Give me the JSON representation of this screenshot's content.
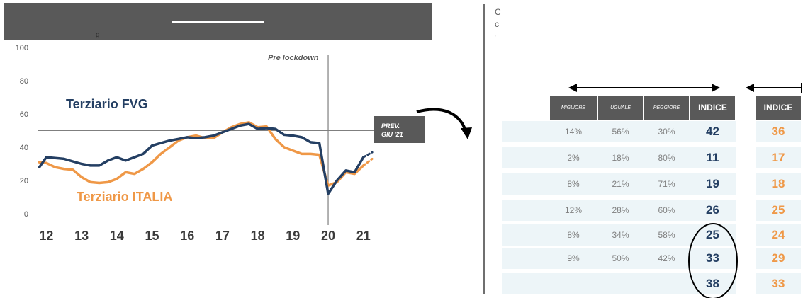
{
  "header": {
    "fragment": "g"
  },
  "chart_data": {
    "type": "line",
    "ylim": [
      0,
      100
    ],
    "y_ticks": [
      "0",
      "20",
      "40",
      "60",
      "80",
      "100"
    ],
    "x_labels": [
      "12",
      "13",
      "14",
      "15",
      "16",
      "17",
      "18",
      "19",
      "20",
      "21"
    ],
    "xlim": [
      2011.75,
      2021.75
    ],
    "reference_line": 50,
    "lockdown_x": 2020.0,
    "lockdown_label": "Pre lockdown",
    "forecast_label_line1": "PREV.",
    "forecast_label_line2": "GIU '21",
    "colors": {
      "fvg": "#243f63",
      "italia": "#ef9847"
    },
    "series": [
      {
        "name": "Terziario FVG",
        "color": "#243f63",
        "x": [
          2011.8,
          2012.0,
          2012.25,
          2012.5,
          2012.75,
          2013.0,
          2013.25,
          2013.5,
          2013.75,
          2014.0,
          2014.25,
          2014.5,
          2014.75,
          2015.0,
          2015.25,
          2015.5,
          2015.75,
          2016.0,
          2016.25,
          2016.5,
          2016.75,
          2017.0,
          2017.25,
          2017.5,
          2017.75,
          2018.0,
          2018.25,
          2018.5,
          2018.75,
          2019.0,
          2019.25,
          2019.5,
          2019.75,
          2020.0,
          2020.25,
          2020.5,
          2020.75,
          2021.0
        ],
        "values": [
          28,
          34,
          33.5,
          33,
          31.5,
          30,
          29,
          29,
          32,
          34,
          32,
          34,
          36,
          41,
          42.5,
          44,
          45,
          46,
          45.5,
          46,
          47,
          49,
          51,
          53,
          54,
          51,
          51.5,
          51,
          47.5,
          47,
          46,
          43,
          42.5,
          12,
          20,
          26,
          25,
          34
        ]
      },
      {
        "name": "Terziario ITALIA",
        "color": "#ef9847",
        "x": [
          2011.8,
          2012.0,
          2012.25,
          2012.5,
          2012.75,
          2013.0,
          2013.25,
          2013.5,
          2013.75,
          2014.0,
          2014.25,
          2014.5,
          2014.75,
          2015.0,
          2015.25,
          2015.5,
          2015.75,
          2016.0,
          2016.25,
          2016.5,
          2016.75,
          2017.0,
          2017.25,
          2017.5,
          2017.75,
          2018.0,
          2018.25,
          2018.5,
          2018.75,
          2019.0,
          2019.25,
          2019.5,
          2019.75,
          2020.0,
          2020.25,
          2020.5,
          2020.75,
          2021.0
        ],
        "values": [
          31,
          30.5,
          28,
          27,
          26.5,
          22,
          19,
          18.5,
          19,
          21,
          25,
          24,
          27,
          31,
          36,
          40,
          44,
          46,
          47,
          45.5,
          45.5,
          49,
          52,
          54,
          55,
          52,
          52.5,
          45,
          40,
          38,
          36,
          36,
          35.5,
          17,
          19,
          25,
          24,
          29
        ]
      }
    ],
    "forecast": [
      {
        "series": "Terziario FVG",
        "x": [
          2021.0,
          2021.25
        ],
        "values": [
          34,
          37
        ]
      },
      {
        "series": "Terziario ITALIA",
        "x": [
          2021.0,
          2021.25
        ],
        "values": [
          29,
          33
        ]
      }
    ]
  },
  "texts": {
    "fragment_1": "C",
    "fragment_2": "c",
    "fragment_3": "'"
  },
  "table": {
    "headers": [
      "MIGLIORE",
      "UGUALE",
      "PEGGIORE",
      "INDICE"
    ],
    "second_header": "INDICE",
    "rows": [
      {
        "migliore": "14%",
        "uguale": "56%",
        "peggiore": "30%",
        "indice": "42",
        "indice2": "36"
      },
      {
        "migliore": "2%",
        "uguale": "18%",
        "peggiore": "80%",
        "indice": "11",
        "indice2": "17"
      },
      {
        "migliore": "8%",
        "uguale": "21%",
        "peggiore": "71%",
        "indice": "19",
        "indice2": "18"
      },
      {
        "migliore": "12%",
        "uguale": "28%",
        "peggiore": "60%",
        "indice": "26",
        "indice2": "25"
      },
      {
        "migliore": "8%",
        "uguale": "34%",
        "peggiore": "58%",
        "indice": "25",
        "indice2": "24"
      },
      {
        "migliore": "9%",
        "uguale": "50%",
        "peggiore": "42%",
        "indice": "33",
        "indice2": "29"
      },
      {
        "migliore": "",
        "uguale": "",
        "peggiore": "",
        "indice": "38",
        "indice2": "33"
      }
    ]
  }
}
